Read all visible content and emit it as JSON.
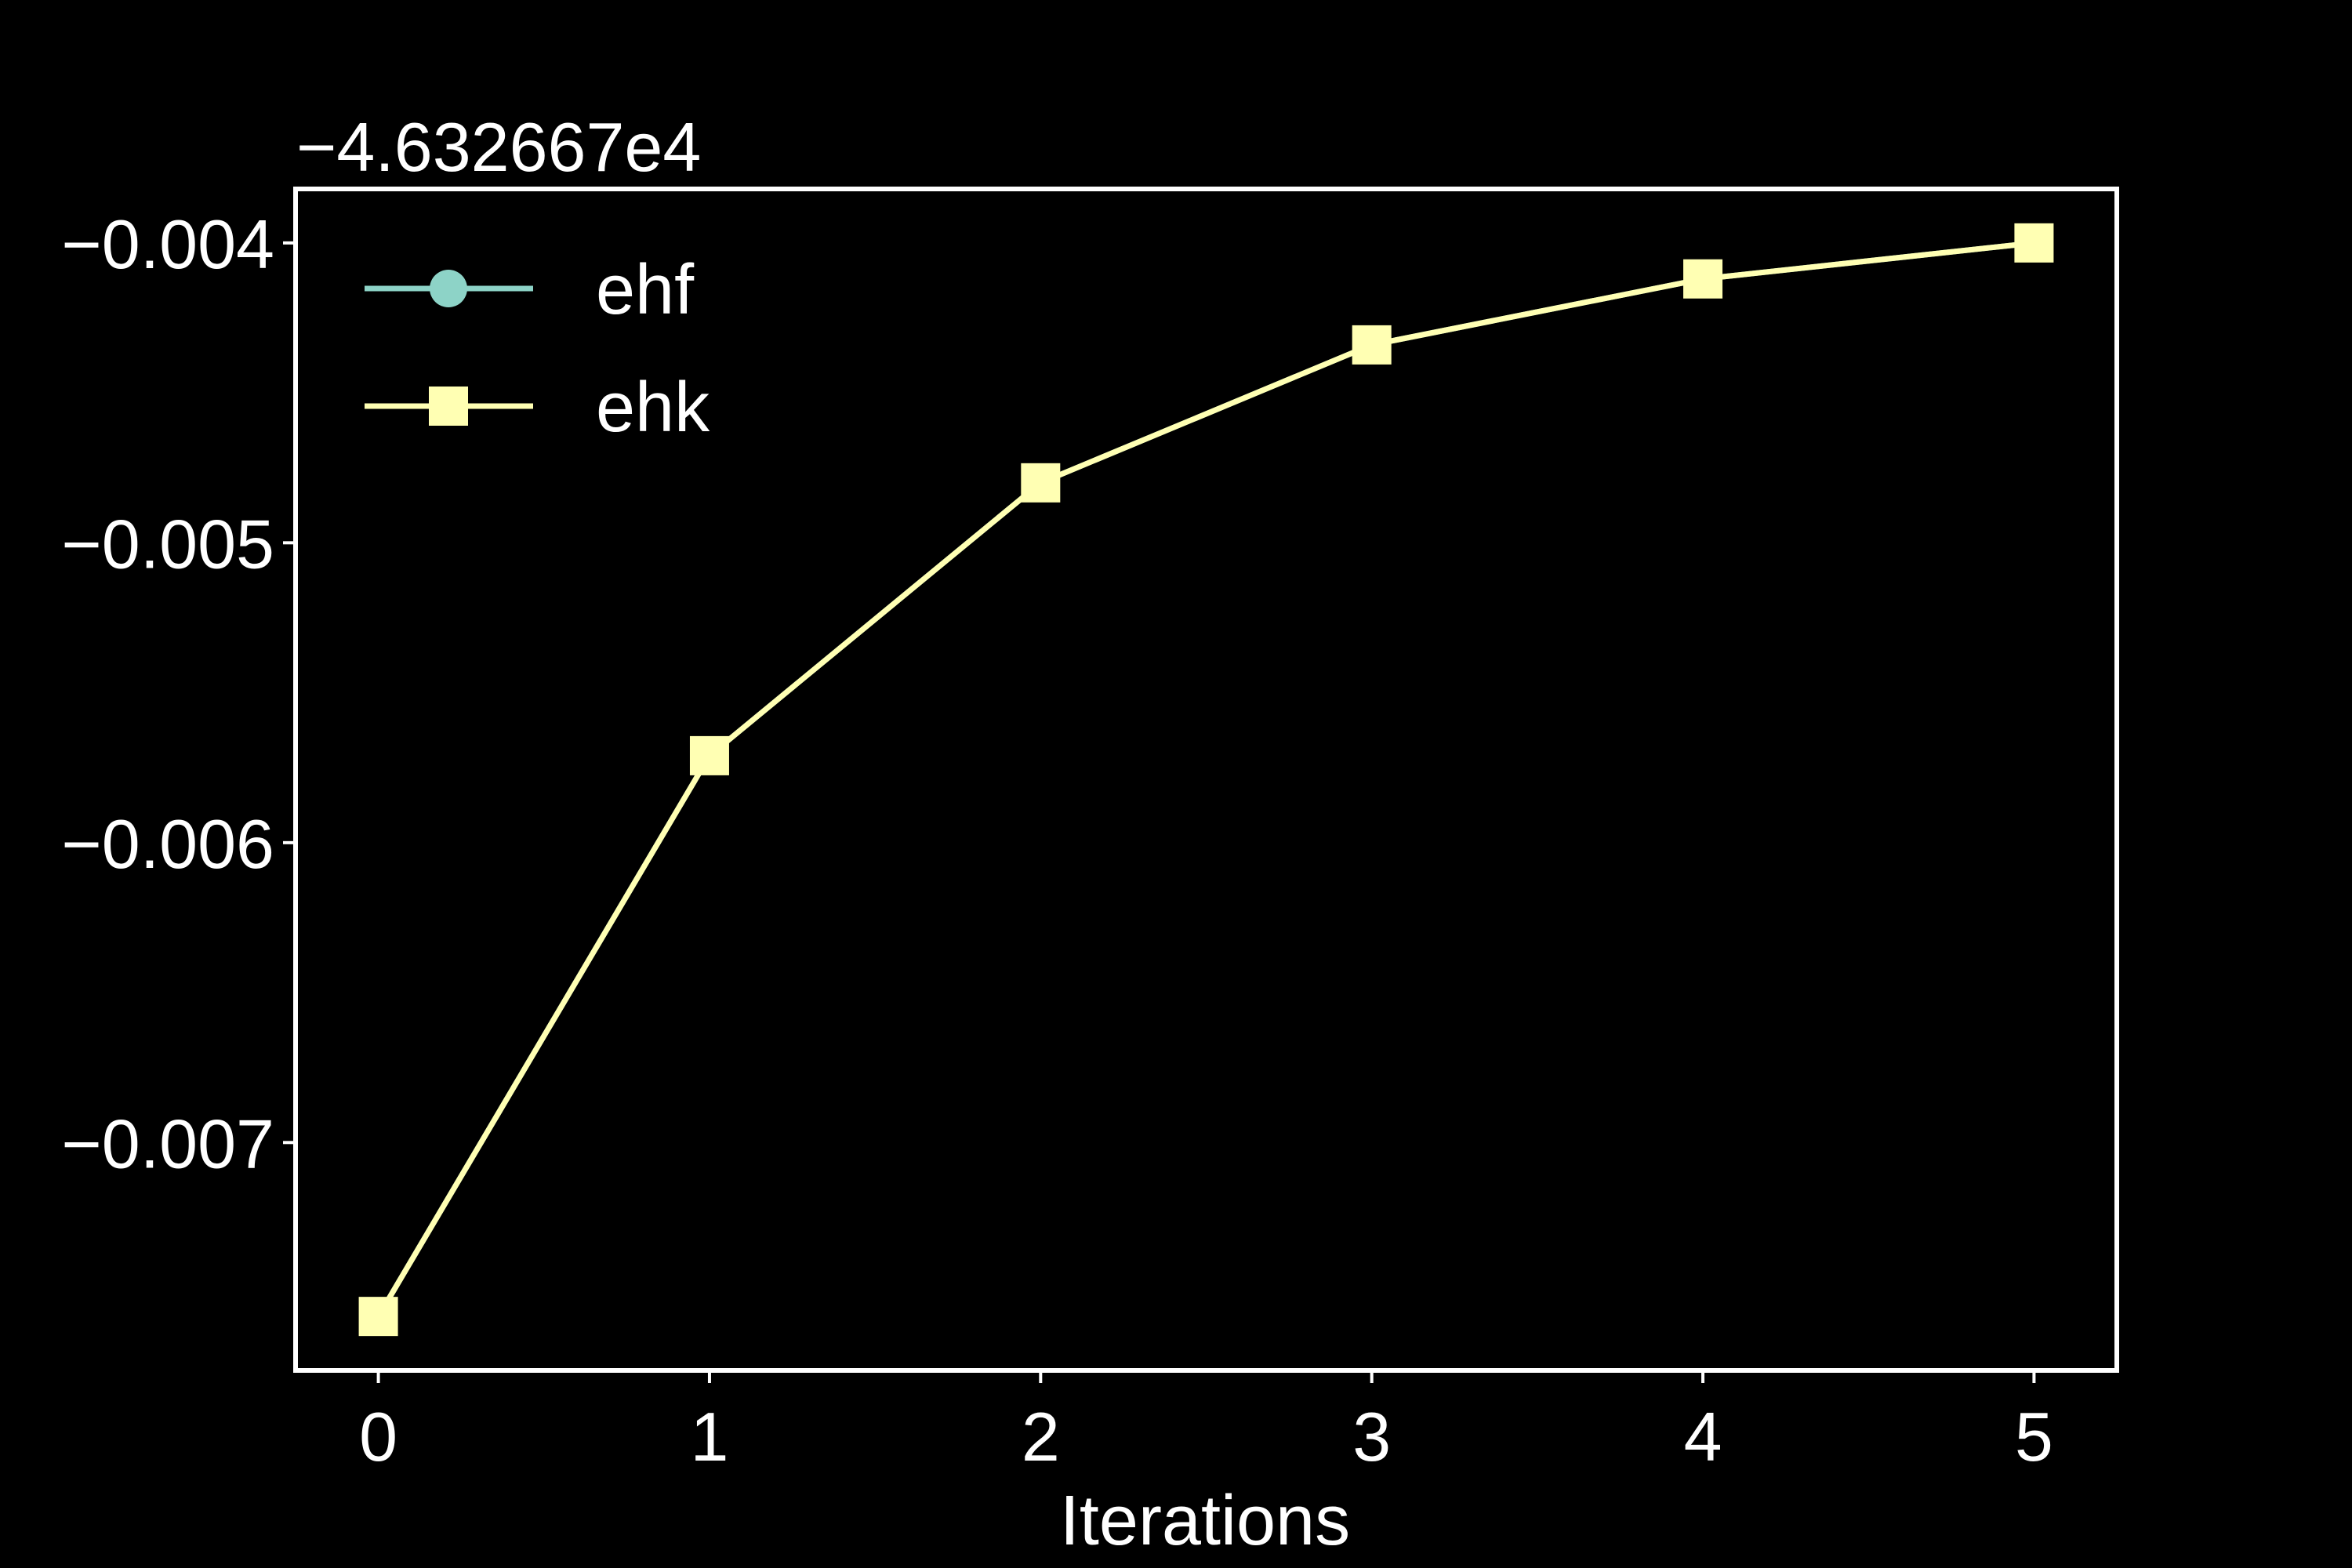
{
  "chart_data": {
    "type": "line",
    "title": "",
    "xlabel": "Iterations",
    "ylabel": "",
    "y_offset_label": "−4.632667e4",
    "x": [
      0,
      1,
      2,
      3,
      4,
      5
    ],
    "x_ticks": [
      "0",
      "1",
      "2",
      "3",
      "4",
      "5"
    ],
    "y_ticks": [
      "−0.004",
      "−0.005",
      "−0.006",
      "−0.007"
    ],
    "y_tick_values": [
      -0.004,
      -0.005,
      -0.006,
      -0.007
    ],
    "xlim": [
      -0.25,
      5.25
    ],
    "ylim": [
      -0.00776,
      -0.00382
    ],
    "grid": false,
    "legend_position": "upper-left",
    "series": [
      {
        "name": "ehf",
        "marker": "circle",
        "color": "#8dd3c7",
        "values": [
          -0.00758,
          -0.00571,
          -0.0048,
          -0.00434,
          -0.00412,
          -0.004
        ]
      },
      {
        "name": "ehk",
        "marker": "square",
        "color": "#ffffb3",
        "values": [
          -0.00758,
          -0.00571,
          -0.0048,
          -0.00434,
          -0.00412,
          -0.004
        ]
      }
    ]
  }
}
